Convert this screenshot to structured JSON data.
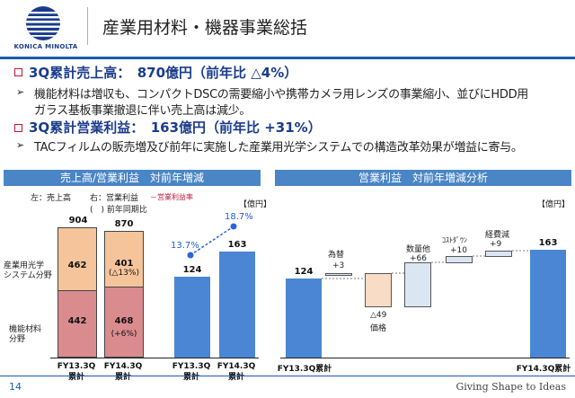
{
  "header": {
    "brand": "KONICA MINOLTA",
    "title": "産業用材料・機器事業総括"
  },
  "bullets": [
    {
      "head": "3Q累計売上高：　870億円（前年比 △4%）",
      "lines": [
        "機能材料は増収も、コンパクトDSCの需要縮小や携帯カメラ用レンズの事業縮小、並びにHDD用",
        "ガラス基板事業撤退に伴い売上高は減少。"
      ]
    },
    {
      "head": "3Q累計営業利益：　163億円（前年比 +31%）",
      "lines": [
        "TACフィルムの販売増及び前年に実施した産業用光学システムでの構造改革効果が増益に寄与。"
      ]
    }
  ],
  "left_panel": {
    "title": "売上高/営業利益　対前年増減",
    "legend_left": "左：売上高",
    "legend_right": "右：営業利益",
    "legend_rate": "－営業利益率",
    "legend_paren": "(　) 前年同期比",
    "unit": "【億円】",
    "seg_label_top": "産業用光学\nシステム分野",
    "seg_label_bot": "機能材料\n分野",
    "sales_bars": [
      {
        "label": "FY13.3Q\n累計",
        "total": "904",
        "top": "462",
        "bottom": "442"
      },
      {
        "label": "FY14.3Q\n累計",
        "total": "870",
        "top": "401",
        "top_note": "(△13%)",
        "bottom": "468",
        "bottom_note": "(+6%)"
      }
    ],
    "profit_bars": [
      {
        "label": "FY13.3Q\n累計",
        "value": "124",
        "rate": "13.7%"
      },
      {
        "label": "FY14.3Q\n累計",
        "value": "163",
        "rate": "18.7%"
      }
    ]
  },
  "right_panel": {
    "title": "営業利益　対前年増減分析",
    "unit": "【億円】",
    "start": {
      "label": "FY13.3Q累計",
      "value": "124"
    },
    "end": {
      "label": "FY14.3Q累計",
      "value": "163"
    },
    "steps": [
      {
        "name": "為替",
        "value": "+3"
      },
      {
        "name": "価格",
        "value": "△49"
      },
      {
        "name": "数量他",
        "value": "+66"
      },
      {
        "name": "ｺｽﾄﾀﾞｳﾝ",
        "value": "+10"
      },
      {
        "name": "経費減",
        "value": "+9"
      }
    ]
  },
  "footer": {
    "page": "14",
    "tagline": "Giving Shape to Ideas"
  },
  "colors": {
    "brand": "#1b3c8c",
    "accent_blue": "#4a86d4",
    "sales_top": "#f5c49a",
    "sales_bottom": "#d98b8e",
    "bullet_red": "#c0143c"
  }
}
